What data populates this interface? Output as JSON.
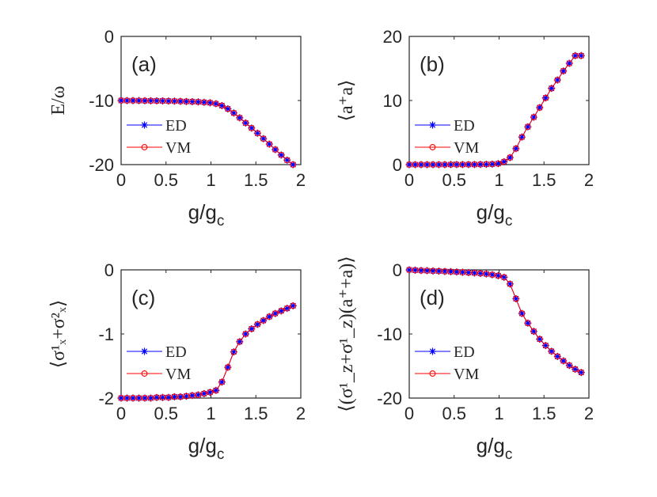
{
  "chart_data": [
    {
      "id": "a",
      "type": "line",
      "panel_label": "(a)",
      "ylabel": "E/ω",
      "xlabel": "g/g",
      "xlabel_sub": "c",
      "xlim": [
        0,
        2
      ],
      "ylim": [
        -20,
        0
      ],
      "xticks": [
        0,
        0.5,
        1,
        1.5,
        2
      ],
      "xtick_labels": [
        "0",
        "0.5",
        "1",
        "1.5",
        "2"
      ],
      "yticks": [
        -20,
        -10,
        0
      ],
      "ytick_labels": [
        "-20",
        "-10",
        "0"
      ],
      "x": [
        0,
        0.066,
        0.132,
        0.198,
        0.264,
        0.33,
        0.396,
        0.462,
        0.528,
        0.594,
        0.66,
        0.726,
        0.792,
        0.858,
        0.924,
        0.99,
        1.056,
        1.122,
        1.188,
        1.254,
        1.32,
        1.386,
        1.452,
        1.518,
        1.584,
        1.65,
        1.716,
        1.782,
        1.848,
        1.914
      ],
      "series": [
        {
          "name": "ED",
          "color": "#0000ff",
          "marker": "star",
          "values": [
            -10,
            -10.01,
            -10.01,
            -10.02,
            -10.03,
            -10.04,
            -10.05,
            -10.06,
            -10.08,
            -10.1,
            -10.12,
            -10.15,
            -10.18,
            -10.22,
            -10.28,
            -10.35,
            -10.5,
            -10.8,
            -11.3,
            -11.95,
            -12.7,
            -13.5,
            -14.3,
            -15.1,
            -15.95,
            -16.8,
            -17.65,
            -18.5,
            -19.3,
            -20.0
          ]
        },
        {
          "name": "VM",
          "color": "#ff0000",
          "marker": "circle",
          "values": [
            -10,
            -10.01,
            -10.01,
            -10.02,
            -10.03,
            -10.04,
            -10.05,
            -10.06,
            -10.08,
            -10.1,
            -10.12,
            -10.15,
            -10.18,
            -10.22,
            -10.28,
            -10.35,
            -10.5,
            -10.8,
            -11.3,
            -11.95,
            -12.7,
            -13.5,
            -14.3,
            -15.1,
            -15.95,
            -16.8,
            -17.65,
            -18.5,
            -19.3,
            -20.0
          ]
        }
      ],
      "legend_position": "left-middle"
    },
    {
      "id": "b",
      "type": "line",
      "panel_label": "(b)",
      "ylabel": "⟨a⁺a⟩",
      "xlabel": "g/g",
      "xlabel_sub": "c",
      "xlim": [
        0,
        2
      ],
      "ylim": [
        0,
        20
      ],
      "xticks": [
        0,
        0.5,
        1,
        1.5,
        2
      ],
      "xtick_labels": [
        "0",
        "0.5",
        "1",
        "1.5",
        "2"
      ],
      "yticks": [
        0,
        10,
        20
      ],
      "ytick_labels": [
        "0",
        "10",
        "20"
      ],
      "x": [
        0,
        0.066,
        0.132,
        0.198,
        0.264,
        0.33,
        0.396,
        0.462,
        0.528,
        0.594,
        0.66,
        0.726,
        0.792,
        0.858,
        0.924,
        0.99,
        1.056,
        1.122,
        1.188,
        1.254,
        1.32,
        1.386,
        1.452,
        1.518,
        1.584,
        1.65,
        1.716,
        1.782,
        1.848,
        1.914
      ],
      "series": [
        {
          "name": "ED",
          "color": "#0000ff",
          "marker": "star",
          "values": [
            0,
            0,
            0,
            0,
            0,
            0,
            0,
            0.01,
            0.01,
            0.01,
            0.02,
            0.02,
            0.03,
            0.05,
            0.08,
            0.15,
            0.45,
            1.1,
            2.5,
            4.3,
            5.9,
            7.4,
            8.9,
            10.4,
            11.9,
            13.2,
            14.6,
            15.8,
            17.0,
            17.0
          ]
        },
        {
          "name": "VM",
          "color": "#ff0000",
          "marker": "circle",
          "values": [
            0,
            0,
            0,
            0,
            0,
            0,
            0,
            0.01,
            0.01,
            0.01,
            0.02,
            0.02,
            0.03,
            0.05,
            0.08,
            0.15,
            0.45,
            1.1,
            2.5,
            4.3,
            5.9,
            7.4,
            8.9,
            10.4,
            11.9,
            13.2,
            14.6,
            15.8,
            17.0,
            17.0
          ]
        }
      ],
      "legend_position": "left-middle"
    },
    {
      "id": "c",
      "type": "line",
      "panel_label": "(c)",
      "ylabel": "⟨σ¹ₓ+σ²ₓ⟩",
      "xlabel": "g/g",
      "xlabel_sub": "c",
      "xlim": [
        0,
        2
      ],
      "ylim": [
        -2,
        0
      ],
      "xticks": [
        0,
        0.5,
        1,
        1.5,
        2
      ],
      "xtick_labels": [
        "0",
        "0.5",
        "1",
        "1.5",
        "2"
      ],
      "yticks": [
        -2,
        -1,
        0
      ],
      "ytick_labels": [
        "-2",
        "-1",
        "0"
      ],
      "x": [
        0,
        0.066,
        0.132,
        0.198,
        0.264,
        0.33,
        0.396,
        0.462,
        0.528,
        0.594,
        0.66,
        0.726,
        0.792,
        0.858,
        0.924,
        0.99,
        1.056,
        1.122,
        1.188,
        1.254,
        1.32,
        1.386,
        1.452,
        1.518,
        1.584,
        1.65,
        1.716,
        1.782,
        1.848,
        1.914
      ],
      "series": [
        {
          "name": "ED",
          "color": "#0000ff",
          "marker": "star",
          "values": [
            -2.0,
            -2.0,
            -2.0,
            -2.0,
            -2.0,
            -2.0,
            -1.99,
            -1.99,
            -1.99,
            -1.98,
            -1.98,
            -1.97,
            -1.96,
            -1.95,
            -1.93,
            -1.91,
            -1.88,
            -1.75,
            -1.52,
            -1.28,
            -1.12,
            -1.0,
            -0.92,
            -0.85,
            -0.79,
            -0.73,
            -0.68,
            -0.64,
            -0.6,
            -0.56
          ]
        },
        {
          "name": "VM",
          "color": "#ff0000",
          "marker": "circle",
          "values": [
            -2.0,
            -2.0,
            -2.0,
            -2.0,
            -2.0,
            -2.0,
            -1.99,
            -1.99,
            -1.99,
            -1.98,
            -1.98,
            -1.97,
            -1.96,
            -1.95,
            -1.93,
            -1.91,
            -1.88,
            -1.75,
            -1.52,
            -1.28,
            -1.12,
            -1.0,
            -0.92,
            -0.85,
            -0.79,
            -0.73,
            -0.68,
            -0.64,
            -0.6,
            -0.56
          ]
        }
      ],
      "legend_position": "left-bottom"
    },
    {
      "id": "d",
      "type": "line",
      "panel_label": "(d)",
      "ylabel": "⟨(σ¹_z+σ¹_z)(a⁺+a)⟩",
      "xlabel": "g/g",
      "xlabel_sub": "c",
      "xlim": [
        0,
        2
      ],
      "ylim": [
        -20,
        0
      ],
      "xticks": [
        0,
        0.5,
        1,
        1.5,
        2
      ],
      "xtick_labels": [
        "0",
        "0.5",
        "1",
        "1.5",
        "2"
      ],
      "yticks": [
        -20,
        -10,
        0
      ],
      "ytick_labels": [
        "-20",
        "-10",
        "0"
      ],
      "x": [
        0,
        0.066,
        0.132,
        0.198,
        0.264,
        0.33,
        0.396,
        0.462,
        0.528,
        0.594,
        0.66,
        0.726,
        0.792,
        0.858,
        0.924,
        0.99,
        1.056,
        1.122,
        1.188,
        1.254,
        1.32,
        1.386,
        1.452,
        1.518,
        1.584,
        1.65,
        1.716,
        1.782,
        1.848,
        1.914
      ],
      "series": [
        {
          "name": "ED",
          "color": "#0000ff",
          "marker": "star",
          "values": [
            0,
            -0.05,
            -0.1,
            -0.13,
            -0.17,
            -0.2,
            -0.24,
            -0.28,
            -0.32,
            -0.37,
            -0.42,
            -0.48,
            -0.55,
            -0.63,
            -0.75,
            -0.9,
            -1.15,
            -2.2,
            -4.5,
            -6.8,
            -8.3,
            -9.6,
            -10.8,
            -11.8,
            -12.7,
            -13.5,
            -14.2,
            -14.9,
            -15.5,
            -16.0
          ]
        },
        {
          "name": "VM",
          "color": "#ff0000",
          "marker": "circle",
          "values": [
            0,
            -0.05,
            -0.1,
            -0.13,
            -0.17,
            -0.2,
            -0.24,
            -0.28,
            -0.32,
            -0.37,
            -0.42,
            -0.48,
            -0.55,
            -0.63,
            -0.75,
            -0.9,
            -1.15,
            -2.2,
            -4.5,
            -6.8,
            -8.3,
            -9.6,
            -10.8,
            -11.8,
            -12.7,
            -13.5,
            -14.2,
            -14.9,
            -15.5,
            -16.0
          ]
        }
      ],
      "legend_position": "left-bottom"
    }
  ]
}
